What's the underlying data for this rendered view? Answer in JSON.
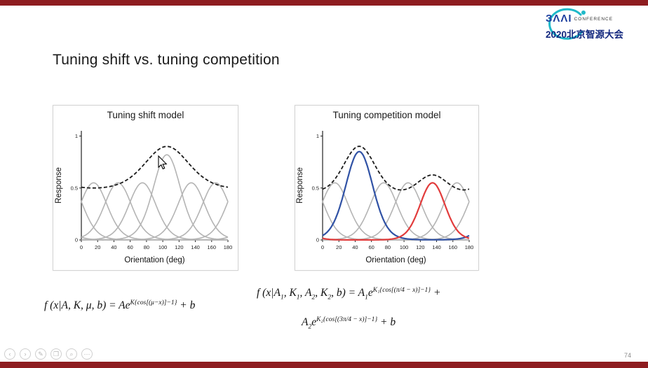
{
  "slide": {
    "title": "Tuning shift vs. tuning competition",
    "page_number": "74"
  },
  "logo": {
    "baai": "ЗΛΛI",
    "conference": "CONFERENCE",
    "year_line": "2020北京智源大会"
  },
  "colors": {
    "bar_red": "#8e1d20",
    "gray_curve": "#b4b4b4",
    "blue_curve": "#3052a5",
    "red_curve": "#e23c3c",
    "envelope_black": "#1a1a1a",
    "logo_blue": "#1c3e9e",
    "logo_teal": "#1fb9c9"
  },
  "chart_data": [
    {
      "type": "line",
      "title": "Tuning shift model",
      "xlabel": "Orientation (deg)",
      "ylabel": "Response",
      "xlim": [
        0,
        180
      ],
      "ylim": [
        0,
        1.05
      ],
      "xticks": [
        0,
        20,
        40,
        60,
        80,
        100,
        120,
        140,
        160,
        180
      ],
      "yticks": [
        0,
        0.5,
        1
      ],
      "legend": "off",
      "grid": "off",
      "curves": [
        {
          "name": "gray-tuning-curve-15",
          "color": "#b4b4b4",
          "width": 1.6,
          "dash": "",
          "baseline": 0,
          "components": [
            {
              "center": 15,
              "amplitude": 0.55,
              "k": 3
            }
          ]
        },
        {
          "name": "gray-tuning-curve-45",
          "color": "#b4b4b4",
          "width": 1.6,
          "dash": "",
          "baseline": 0,
          "components": [
            {
              "center": 45,
              "amplitude": 0.55,
              "k": 3
            }
          ]
        },
        {
          "name": "gray-tuning-curve-75",
          "color": "#b4b4b4",
          "width": 1.6,
          "dash": "",
          "baseline": 0,
          "components": [
            {
              "center": 75,
              "amplitude": 0.55,
              "k": 3
            }
          ]
        },
        {
          "name": "gray-tuning-curve-105-boosted",
          "color": "#b4b4b4",
          "width": 1.6,
          "dash": "",
          "baseline": 0,
          "components": [
            {
              "center": 105,
              "amplitude": 0.82,
              "k": 3
            }
          ]
        },
        {
          "name": "gray-tuning-curve-135",
          "color": "#b4b4b4",
          "width": 1.6,
          "dash": "",
          "baseline": 0,
          "components": [
            {
              "center": 135,
              "amplitude": 0.55,
              "k": 3
            }
          ]
        },
        {
          "name": "gray-tuning-curve-165",
          "color": "#b4b4b4",
          "width": 1.6,
          "dash": "",
          "baseline": 0,
          "components": [
            {
              "center": 165,
              "amplitude": 0.55,
              "k": 3
            }
          ]
        },
        {
          "name": "population-envelope-dashed",
          "color": "#1a1a1a",
          "width": 1.8,
          "dash": "5,3",
          "baseline": 0.45,
          "components": [
            {
              "center": 105,
              "amplitude": 0.45,
              "k": 1.1
            }
          ]
        }
      ]
    },
    {
      "type": "line",
      "title": "Tuning competition model",
      "xlabel": "Orientation (deg)",
      "ylabel": "Response",
      "xlim": [
        0,
        180
      ],
      "ylim": [
        0,
        1.05
      ],
      "xticks": [
        0,
        20,
        40,
        60,
        80,
        100,
        120,
        140,
        160,
        180
      ],
      "yticks": [
        0,
        0.5,
        1
      ],
      "legend": "off",
      "grid": "off",
      "curves": [
        {
          "name": "gray-tuning-curve-15",
          "color": "#b4b4b4",
          "width": 1.6,
          "dash": "",
          "baseline": 0,
          "components": [
            {
              "center": 15,
              "amplitude": 0.55,
              "k": 3
            }
          ]
        },
        {
          "name": "gray-tuning-curve-75",
          "color": "#b4b4b4",
          "width": 1.6,
          "dash": "",
          "baseline": 0,
          "components": [
            {
              "center": 75,
              "amplitude": 0.55,
              "k": 3
            }
          ]
        },
        {
          "name": "gray-tuning-curve-105",
          "color": "#b4b4b4",
          "width": 1.6,
          "dash": "",
          "baseline": 0,
          "components": [
            {
              "center": 105,
              "amplitude": 0.55,
              "k": 3
            }
          ]
        },
        {
          "name": "gray-tuning-curve-165",
          "color": "#b4b4b4",
          "width": 1.6,
          "dash": "",
          "baseline": 0,
          "components": [
            {
              "center": 165,
              "amplitude": 0.55,
              "k": 3
            }
          ]
        },
        {
          "name": "blue-tuning-curve-45",
          "color": "#3052a5",
          "width": 2.2,
          "dash": "",
          "baseline": 0,
          "components": [
            {
              "center": 45,
              "amplitude": 0.85,
              "k": 3
            }
          ]
        },
        {
          "name": "red-tuning-curve-135",
          "color": "#e23c3c",
          "width": 2.2,
          "dash": "",
          "baseline": 0,
          "components": [
            {
              "center": 135,
              "amplitude": 0.55,
              "k": 3.5
            }
          ]
        },
        {
          "name": "population-envelope-dashed",
          "color": "#1a1a1a",
          "width": 1.8,
          "dash": "5,3",
          "baseline": 0.42,
          "components": [
            {
              "center": 45,
              "amplitude": 0.48,
              "k": 2.2
            },
            {
              "center": 135,
              "amplitude": 0.2,
              "k": 2.5
            }
          ]
        }
      ]
    }
  ],
  "formulas": {
    "left": [
      {
        "t": "i",
        "v": "f (x|A, K, μ, b) = Ae"
      },
      {
        "t": "sup",
        "v": "K{cos[(μ−x)]−1}"
      },
      {
        "t": "i",
        "v": " + b"
      }
    ],
    "right_line1": [
      {
        "t": "i",
        "v": "f (x|A"
      },
      {
        "t": "sub",
        "v": "1"
      },
      {
        "t": "i",
        "v": ", K"
      },
      {
        "t": "sub",
        "v": "1"
      },
      {
        "t": "i",
        "v": ", A"
      },
      {
        "t": "sub",
        "v": "2"
      },
      {
        "t": "i",
        "v": ", K"
      },
      {
        "t": "sub",
        "v": "2"
      },
      {
        "t": "i",
        "v": ", b) = A"
      },
      {
        "t": "sub",
        "v": "1"
      },
      {
        "t": "i",
        "v": "e"
      },
      {
        "t": "sup",
        "v": "K₁{cos[(π/4 − x)]−1}"
      },
      {
        "t": "i",
        "v": " +"
      }
    ],
    "right_line2": [
      {
        "t": "i",
        "v": "A"
      },
      {
        "t": "sub",
        "v": "2"
      },
      {
        "t": "i",
        "v": "e"
      },
      {
        "t": "sup",
        "v": "K₂{cos[(3π/4 − x)]−1}"
      },
      {
        "t": "i",
        "v": " + b"
      }
    ]
  },
  "toolbar": {
    "tools": [
      {
        "name": "prev-page",
        "glyph": "‹"
      },
      {
        "name": "next-page",
        "glyph": "›"
      },
      {
        "name": "pen-tool",
        "glyph": "✎"
      },
      {
        "name": "pages-overview",
        "glyph": "❐"
      },
      {
        "name": "zoom",
        "glyph": "⌕"
      },
      {
        "name": "more-tools",
        "glyph": "⋯"
      }
    ]
  }
}
